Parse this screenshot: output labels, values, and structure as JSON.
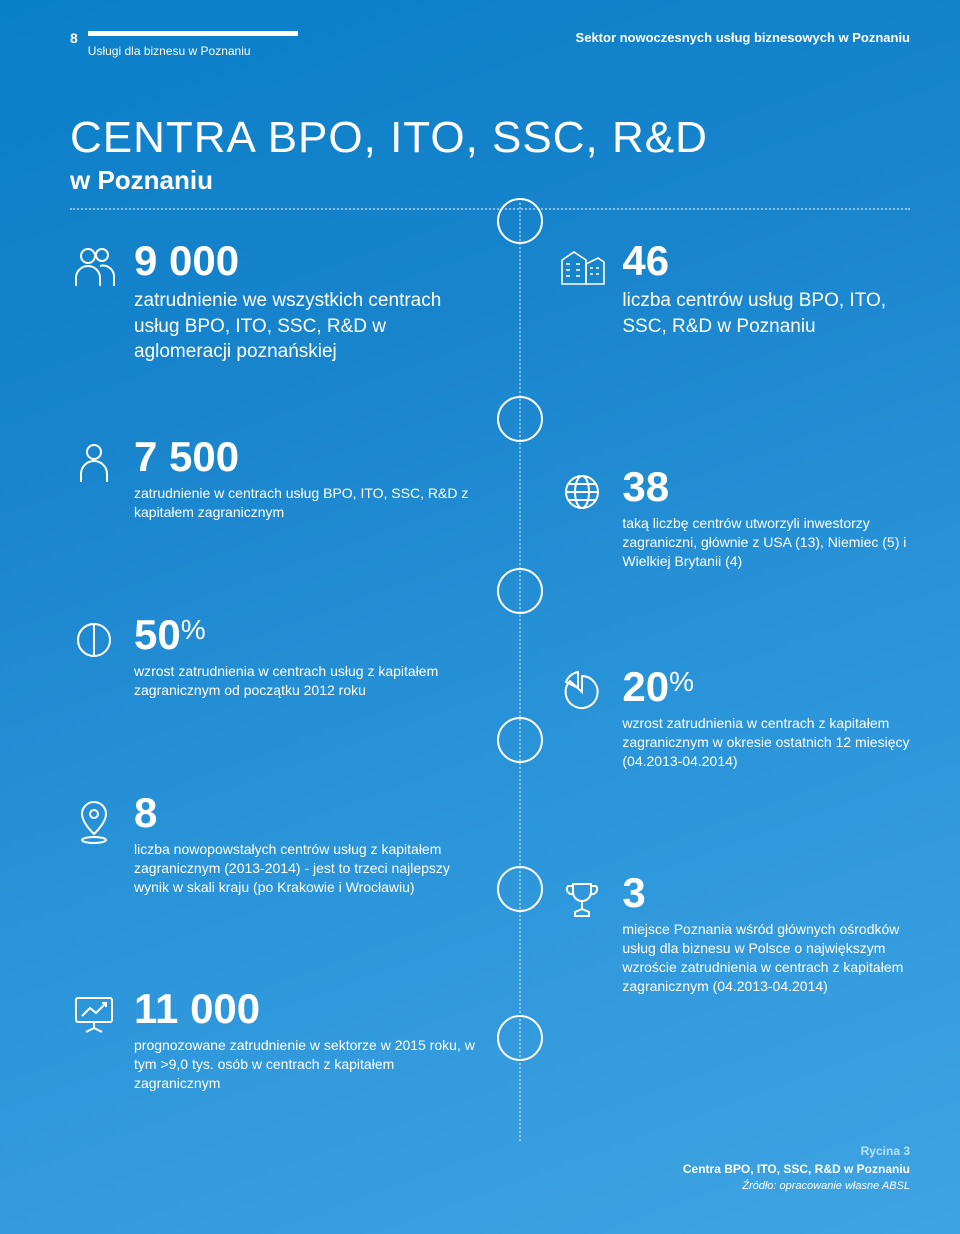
{
  "header": {
    "page_number": "8",
    "subtitle": "Usługi dla biznesu w Poznaniu",
    "right_title": "Sektor nowoczesnych usług biznesowych w Poznaniu"
  },
  "title": {
    "main": "CENTRA BPO, ITO, SSC, R&D",
    "sub": "w Poznaniu"
  },
  "left_stats": [
    {
      "number": "9 000",
      "desc": "zatrudnienie we wszystkich centrach usług BPO, ITO, SSC, R&D w aglomeracji poznańskiej"
    },
    {
      "number": "7 500",
      "desc": "zatrudnienie w centrach usług BPO, ITO, SSC, R&D z kapitałem zagranicznym"
    },
    {
      "number": "50",
      "percent": true,
      "desc": "wzrost zatrudnienia w centrach usług z kapitałem zagranicznym od początku 2012 roku"
    },
    {
      "number": "8",
      "desc": "liczba nowopowstałych centrów usług z kapitałem zagranicznym (2013-2014) - jest to trzeci najlepszy wynik w skali kraju (po Krakowie i Wrocławiu)"
    },
    {
      "number": "11 000",
      "desc": "prognozowane zatrudnienie w sektorze w 2015 roku, w tym >9,0 tys. osób w centrach z kapitałem zagranicznym"
    }
  ],
  "right_stats": [
    {
      "number": "46",
      "desc": "liczba centrów usług BPO, ITO, SSC, R&D w Poznaniu"
    },
    {
      "number": "38",
      "desc": "taką liczbę centrów utworzyli inwestorzy zagraniczni, głównie z USA (13), Niemiec (5) i Wielkiej Brytanii (4)"
    },
    {
      "number": "20",
      "percent": true,
      "desc": "wzrost zatrudnienia w centrach z kapitałem zagranicznym w okresie ostatnich 12 miesięcy (04.2013-04.2014)"
    },
    {
      "number": "3",
      "desc": "miejsce Poznania wśród głównych ośrodków usług dla biznesu w Polsce o największym wzroście zatrudnienia w centrach z kapitałem zagranicznym (04.2013-04.2014)"
    }
  ],
  "footer": {
    "figure_label": "Rycina 3",
    "figure_title": "Centra BPO, ITO, SSC, R&D w Poznaniu",
    "source": "Źródło: opracowanie własne ABSL"
  },
  "spine_circle_tops": [
    0,
    198,
    370,
    519,
    668,
    817
  ]
}
